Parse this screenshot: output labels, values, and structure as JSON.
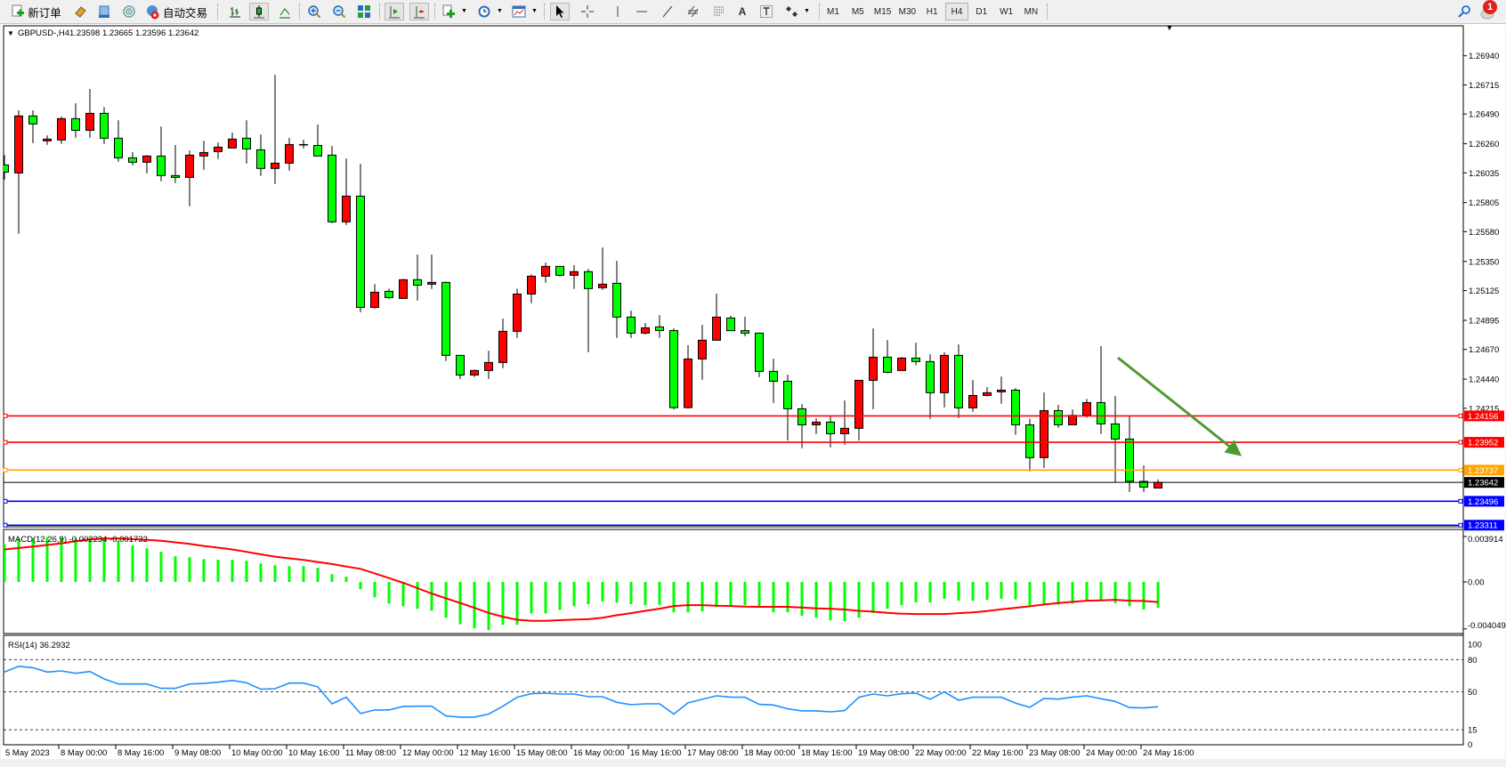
{
  "toolbar": {
    "new_order_label": "新订单",
    "autotrade_label": "自动交易",
    "timeframes": [
      "M1",
      "M5",
      "M15",
      "M30",
      "H1",
      "H4",
      "D1",
      "W1",
      "MN"
    ],
    "active_timeframe": "H4",
    "notification_count": "1",
    "icons": [
      "new-order-icon",
      "metaeditor-icon",
      "navigator-icon",
      "signals-icon",
      "autotrade-icon",
      "bar-chart-icon",
      "candlestick-icon",
      "line-chart-icon",
      "zoom-in-icon",
      "zoom-out-icon",
      "tile-windows-icon",
      "autoscroll-icon",
      "chart-shift-icon",
      "indicators-icon",
      "periods-icon",
      "templates-icon",
      "cursor-icon",
      "crosshair-icon",
      "vertical-line-icon",
      "horizontal-line-icon",
      "trendline-icon",
      "equidistant-channel-icon",
      "fibonacci-icon",
      "text-icon",
      "text-label-icon",
      "arrows-icon",
      "search-icon",
      "notification-icon"
    ]
  },
  "chart": {
    "symbol_header": "GBPUSD-,H4",
    "header_ohlc": "1.23598 1.23665 1.23596 1.23642",
    "colors": {
      "bear": "#00ff00",
      "bull": "#ff0000",
      "outline": "#000000",
      "macd_hist": "#00ff00",
      "macd_signal": "#ff0000",
      "rsi": "#1e90ff",
      "arrow": "#4f9a2f"
    }
  },
  "chart_data": [
    {
      "type": "candlestick",
      "title": "GBPUSD-,H4",
      "ylim": [
        1.233,
        1.271
      ],
      "y_ticks": [
        "1.26940",
        "1.26715",
        "1.26490",
        "1.26260",
        "1.26035",
        "1.25805",
        "1.25580",
        "1.25350",
        "1.25125",
        "1.24895",
        "1.24670",
        "1.24440",
        "1.24215"
      ],
      "x_tick_labels": [
        "5 May 2023",
        "8 May 00:00",
        "8 May 16:00",
        "9 May 08:00",
        "10 May 00:00",
        "10 May 16:00",
        "11 May 08:00",
        "12 May 00:00",
        "12 May 16:00",
        "15 May 08:00",
        "16 May 00:00",
        "16 May 16:00",
        "17 May 08:00",
        "18 May 00:00",
        "18 May 16:00",
        "19 May 08:00",
        "22 May 00:00",
        "22 May 16:00",
        "23 May 08:00",
        "24 May 00:00",
        "24 May 16:00"
      ],
      "ohlc_order": [
        "open",
        "high",
        "low",
        "close"
      ],
      "candles": [
        [
          1.26096,
          1.26172,
          1.25983,
          1.26041
        ],
        [
          1.26034,
          1.26518,
          1.25564,
          1.26475
        ],
        [
          1.26475,
          1.26518,
          1.26265,
          1.26413
        ],
        [
          1.26282,
          1.26325,
          1.26252,
          1.26296
        ],
        [
          1.26289,
          1.2647,
          1.26259,
          1.26454
        ],
        [
          1.26454,
          1.26573,
          1.26307,
          1.26364
        ],
        [
          1.26364,
          1.26683,
          1.26307,
          1.26495
        ],
        [
          1.26495,
          1.26543,
          1.26259,
          1.26303
        ],
        [
          1.26303,
          1.26442,
          1.26121,
          1.26151
        ],
        [
          1.26151,
          1.26195,
          1.26093,
          1.26117
        ],
        [
          1.26117,
          1.26172,
          1.26031,
          1.26165
        ],
        [
          1.26165,
          1.26394,
          1.2597,
          1.26014
        ],
        [
          1.26014,
          1.2625,
          1.25956,
          1.26
        ],
        [
          1.26,
          1.26208,
          1.25777,
          1.26172
        ],
        [
          1.26165,
          1.26284,
          1.26059,
          1.26192
        ],
        [
          1.26199,
          1.2627,
          1.26142,
          1.26234
        ],
        [
          1.26227,
          1.26346,
          1.26227,
          1.26296
        ],
        [
          1.26303,
          1.26442,
          1.26107,
          1.2622
        ],
        [
          1.26213,
          1.26332,
          1.26011,
          1.26069
        ],
        [
          1.26069,
          1.26793,
          1.25949,
          1.2611
        ],
        [
          1.2611,
          1.26305,
          1.26052,
          1.26254
        ],
        [
          1.26252,
          1.26291,
          1.26224,
          1.26252
        ],
        [
          1.26247,
          1.26408,
          1.26165,
          1.26165
        ],
        [
          1.26172,
          1.26243,
          1.25646,
          1.25656
        ],
        [
          1.25656,
          1.26146,
          1.25632,
          1.25855
        ],
        [
          1.25855,
          1.26105,
          1.24958,
          1.24995
        ],
        [
          1.24995,
          1.25174,
          1.24986,
          1.25112
        ],
        [
          1.25119,
          1.2514,
          1.25061,
          1.25071
        ],
        [
          1.25064,
          1.25215,
          1.25064,
          1.25209
        ],
        [
          1.25209,
          1.25403,
          1.25048,
          1.25167
        ],
        [
          1.25174,
          1.25403,
          1.25137,
          1.25188
        ],
        [
          1.25188,
          1.25195,
          1.2458,
          1.24624
        ],
        [
          1.24624,
          1.24624,
          1.24442,
          1.24472
        ],
        [
          1.24472,
          1.24514,
          1.24456,
          1.24507
        ],
        [
          1.24507,
          1.2466,
          1.24442,
          1.24569
        ],
        [
          1.24569,
          1.24908,
          1.24525,
          1.2481
        ],
        [
          1.2481,
          1.2514,
          1.24759,
          1.25098
        ],
        [
          1.25098,
          1.2525,
          1.25027,
          1.25236
        ],
        [
          1.25236,
          1.25341,
          1.25185,
          1.25312
        ],
        [
          1.25312,
          1.25312,
          1.25233,
          1.25243
        ],
        [
          1.25243,
          1.25321,
          1.25137,
          1.25271
        ],
        [
          1.25271,
          1.25291,
          1.24649,
          1.2514
        ],
        [
          1.25147,
          1.25458,
          1.2513,
          1.25174
        ],
        [
          1.25181,
          1.25355,
          1.24759,
          1.2492
        ],
        [
          1.2492,
          1.2497,
          1.24759,
          1.24796
        ],
        [
          1.24796,
          1.24874,
          1.24786,
          1.24837
        ],
        [
          1.24844,
          1.24935,
          1.24759,
          1.24816
        ],
        [
          1.24816,
          1.24832,
          1.24206,
          1.2422
        ],
        [
          1.2422,
          1.24702,
          1.24213,
          1.24596
        ],
        [
          1.24596,
          1.2486,
          1.24435,
          1.24741
        ],
        [
          1.24741,
          1.25101,
          1.24741,
          1.2492
        ],
        [
          1.24913,
          1.24929,
          1.24815,
          1.24815
        ],
        [
          1.24815,
          1.24922,
          1.24772,
          1.24796
        ],
        [
          1.24796,
          1.248,
          1.24456,
          1.245
        ],
        [
          1.245,
          1.24598,
          1.24256,
          1.24424
        ],
        [
          1.24424,
          1.24475,
          1.23965,
          1.24211
        ],
        [
          1.24211,
          1.24247,
          1.23906,
          1.24087
        ],
        [
          1.24087,
          1.24137,
          1.24016,
          1.24108
        ],
        [
          1.24108,
          1.24153,
          1.23912,
          1.24018
        ],
        [
          1.24018,
          1.24275,
          1.23933,
          1.2406
        ],
        [
          1.2406,
          1.24431,
          1.23965,
          1.24431
        ],
        [
          1.24431,
          1.24832,
          1.24208,
          1.2461
        ],
        [
          1.2461,
          1.24743,
          1.24486,
          1.24493
        ],
        [
          1.24507,
          1.24612,
          1.24507,
          1.24603
        ],
        [
          1.24603,
          1.24722,
          1.24548,
          1.24576
        ],
        [
          1.24576,
          1.24633,
          1.24133,
          1.24335
        ],
        [
          1.24335,
          1.24647,
          1.24222,
          1.24624
        ],
        [
          1.24624,
          1.24708,
          1.24139,
          1.24218
        ],
        [
          1.24218,
          1.24433,
          1.24188,
          1.24314
        ],
        [
          1.24314,
          1.24378,
          1.24305,
          1.24335
        ],
        [
          1.24342,
          1.24461,
          1.2425,
          1.24355
        ],
        [
          1.24355,
          1.24371,
          1.24009,
          1.24087
        ],
        [
          1.24087,
          1.24133,
          1.23727,
          1.23833
        ],
        [
          1.23833,
          1.24337,
          1.23754,
          1.24197
        ],
        [
          1.24197,
          1.24241,
          1.24064,
          1.24087
        ],
        [
          1.24087,
          1.24206,
          1.24087,
          1.2416
        ],
        [
          1.2416,
          1.24287,
          1.24142,
          1.24259
        ],
        [
          1.24259,
          1.24695,
          1.24016,
          1.24094
        ],
        [
          1.24094,
          1.24309,
          1.2364,
          1.23977
        ],
        [
          1.23977,
          1.24153,
          1.23568,
          1.2365
        ],
        [
          1.2365,
          1.23773,
          1.23568,
          1.23606
        ],
        [
          1.23598,
          1.23665,
          1.23596,
          1.23642
        ]
      ],
      "levels": [
        {
          "label": "1.24156",
          "price": 1.24156,
          "color": "#ff0000"
        },
        {
          "label": "1.23952",
          "price": 1.23952,
          "color": "#ff0000"
        },
        {
          "label": "1.23737",
          "price": 1.23737,
          "color": "#ffa500"
        },
        {
          "label": "1.23642",
          "price": 1.23642,
          "color": "#000000"
        },
        {
          "label": "1.23496",
          "price": 1.23496,
          "color": "#0000ff"
        },
        {
          "label": "1.23311",
          "price": 1.23311,
          "color": "#0000ff"
        }
      ]
    },
    {
      "type": "bar+line",
      "title": "MACD(12,26,9) -0.002234 -0.001732",
      "ylim": [
        -0.004049,
        0.003914
      ],
      "y_ticks": [
        "0.003914",
        "0.00",
        "-0.004049"
      ],
      "series": [
        {
          "name": "MACD",
          "type": "bar",
          "values": [
            0.00326,
            0.00372,
            0.00377,
            0.00387,
            0.00382,
            0.00377,
            0.00377,
            0.00372,
            0.00356,
            0.00315,
            0.0029,
            0.00259,
            0.00221,
            0.00213,
            0.00197,
            0.0019,
            0.0019,
            0.00182,
            0.00159,
            0.00144,
            0.00136,
            0.00136,
            0.00121,
            0.00067,
            0.00044,
            -0.00062,
            -0.00133,
            -0.00187,
            -0.0021,
            -0.00231,
            -0.00249,
            -0.00308,
            -0.00364,
            -0.004,
            -0.00415,
            -0.00369,
            -0.00369,
            -0.00272,
            -0.00272,
            -0.00241,
            -0.0021,
            -0.00192,
            -0.00169,
            -0.00179,
            -0.00192,
            -0.002,
            -0.00197,
            -0.00262,
            -0.00262,
            -0.00254,
            -0.00218,
            -0.00208,
            -0.002,
            -0.00218,
            -0.00262,
            -0.00262,
            -0.00292,
            -0.00308,
            -0.00331,
            -0.00338,
            -0.00308,
            -0.00269,
            -0.00231,
            -0.002,
            -0.00177,
            -0.00177,
            -0.00146,
            -0.00162,
            -0.00162,
            -0.00154,
            -0.00146,
            -0.00151,
            -0.002,
            -0.00195,
            -0.00195,
            -0.00187,
            -0.00167,
            -0.00167,
            -0.00182,
            -0.00208,
            -0.00238,
            -0.002234
          ]
        },
        {
          "name": "Signal",
          "type": "line",
          "values": [
            0.0028,
            0.00292,
            0.00305,
            0.00318,
            0.00333,
            0.00351,
            0.00367,
            0.00374,
            0.00374,
            0.00369,
            0.00362,
            0.00354,
            0.00341,
            0.00328,
            0.0031,
            0.00295,
            0.0028,
            0.00259,
            0.00238,
            0.00218,
            0.00203,
            0.0019,
            0.00172,
            0.00154,
            0.00133,
            0.00113,
            0.00074,
            0.00033,
            -8e-05,
            -0.00054,
            -0.001,
            -0.00141,
            -0.00182,
            -0.00223,
            -0.00267,
            -0.003,
            -0.00326,
            -0.00336,
            -0.00336,
            -0.0033,
            -0.00325,
            -0.00321,
            -0.00308,
            -0.00287,
            -0.00269,
            -0.00249,
            -0.00231,
            -0.00208,
            -0.002,
            -0.002,
            -0.00205,
            -0.00208,
            -0.00213,
            -0.00215,
            -0.00215,
            -0.00215,
            -0.00221,
            -0.00228,
            -0.00231,
            -0.00238,
            -0.00249,
            -0.00256,
            -0.00267,
            -0.00274,
            -0.00277,
            -0.00277,
            -0.00277,
            -0.00269,
            -0.00262,
            -0.00251,
            -0.00236,
            -0.00223,
            -0.0021,
            -0.00195,
            -0.00182,
            -0.00172,
            -0.00162,
            -0.00159,
            -0.00154,
            -0.00162,
            -0.00164,
            -0.001732
          ]
        }
      ]
    },
    {
      "type": "line",
      "title": "RSI(14) 36.2932",
      "ylim": [
        0,
        100
      ],
      "y_ticks": [
        "100",
        "80",
        "50",
        "15",
        "0"
      ],
      "levels": [
        80,
        50,
        15
      ],
      "values": [
        68.4,
        73.8,
        72.5,
        68.4,
        69.5,
        67.3,
        68.9,
        62.1,
        57.4,
        57.4,
        57.4,
        53.3,
        53.3,
        57.4,
        57.9,
        59.0,
        60.7,
        58.5,
        52.5,
        53.0,
        58.2,
        58.2,
        54.7,
        39.0,
        45.1,
        30.0,
        33.3,
        33.3,
        36.6,
        36.8,
        36.8,
        27.8,
        26.7,
        26.7,
        29.5,
        36.8,
        45.1,
        48.4,
        48.9,
        48.1,
        48.1,
        45.6,
        45.6,
        40.4,
        38.2,
        39.0,
        39.0,
        29.5,
        39.9,
        43.2,
        46.4,
        45.1,
        45.1,
        38.5,
        37.9,
        34.4,
        32.5,
        32.5,
        31.6,
        32.7,
        45.1,
        48.1,
        46.4,
        48.4,
        48.9,
        43.2,
        50.0,
        42.3,
        45.1,
        45.1,
        45.1,
        39.6,
        35.8,
        44.0,
        43.4,
        45.3,
        46.4,
        43.7,
        41.2,
        35.5,
        35.2,
        36.2932
      ]
    }
  ]
}
